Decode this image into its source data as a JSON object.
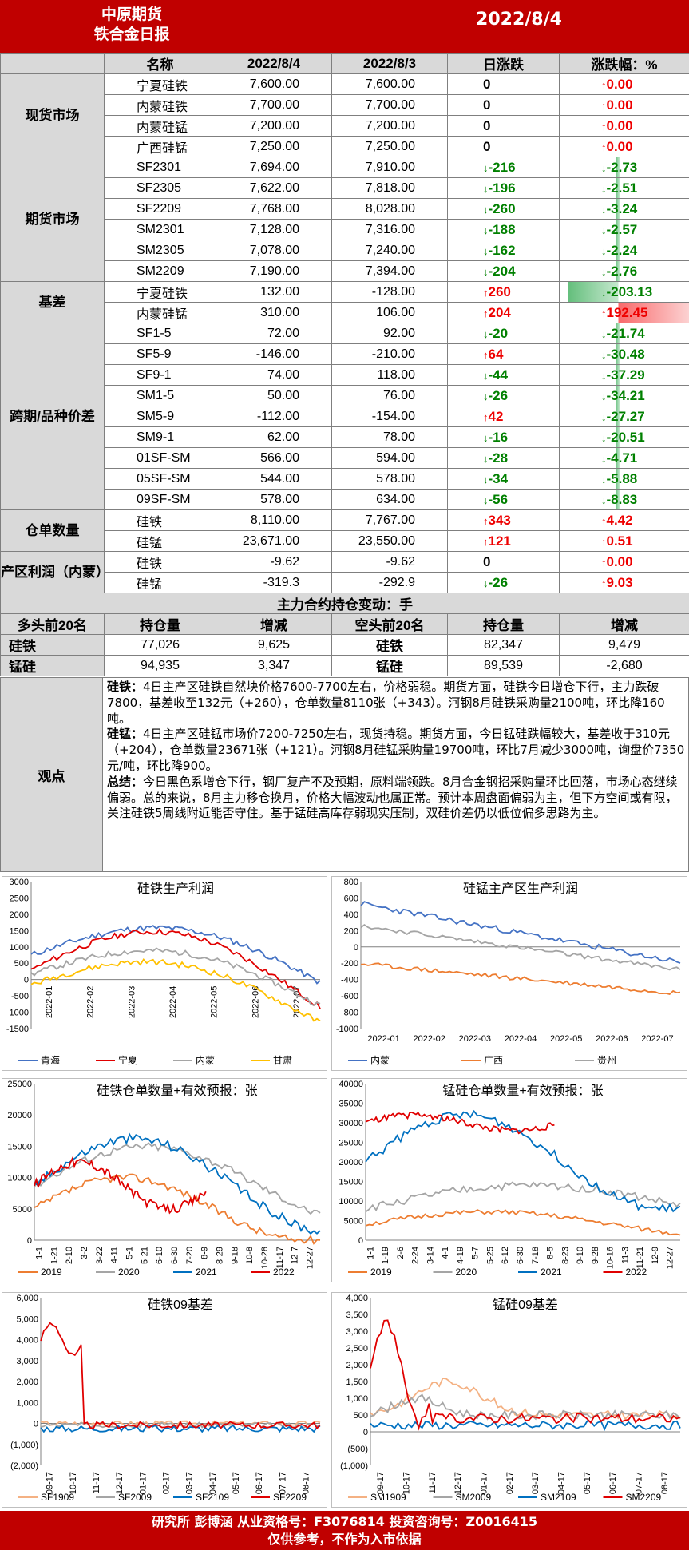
{
  "header": {
    "company": "中原期货",
    "report": "铁合金日报",
    "date": "2022/8/4"
  },
  "columns": {
    "name": "名称",
    "d1": "2022/8/4",
    "d2": "2022/8/3",
    "chg": "日涨跌",
    "pct": "涨跌幅：%"
  },
  "sections": [
    {
      "cat": "现货市场",
      "rows": [
        {
          "name": "宁夏硅铁",
          "v1": "7,600.00",
          "v2": "7,600.00",
          "chg": "0",
          "pct": "0.00",
          "dir": "zr",
          "pdir": "up"
        },
        {
          "name": "内蒙硅铁",
          "v1": "7,700.00",
          "v2": "7,700.00",
          "chg": "0",
          "pct": "0.00",
          "dir": "zr",
          "pdir": "up"
        },
        {
          "name": "内蒙硅锰",
          "v1": "7,200.00",
          "v2": "7,200.00",
          "chg": "0",
          "pct": "0.00",
          "dir": "zr",
          "pdir": "up"
        },
        {
          "name": "广西硅锰",
          "v1": "7,250.00",
          "v2": "7,250.00",
          "chg": "0",
          "pct": "0.00",
          "dir": "zr",
          "pdir": "up"
        }
      ]
    },
    {
      "cat": "期货市场",
      "rows": [
        {
          "name": "SF2301",
          "v1": "7,694.00",
          "v2": "7,910.00",
          "chg": "-216",
          "pct": "-2.73",
          "dir": "dn",
          "pdir": "dn"
        },
        {
          "name": "SF2305",
          "v1": "7,622.00",
          "v2": "7,818.00",
          "chg": "-196",
          "pct": "-2.51",
          "dir": "dn",
          "pdir": "dn"
        },
        {
          "name": "SF2209",
          "v1": "7,768.00",
          "v2": "8,028.00",
          "chg": "-260",
          "pct": "-3.24",
          "dir": "dn",
          "pdir": "dn"
        },
        {
          "name": "SM2301",
          "v1": "7,128.00",
          "v2": "7,316.00",
          "chg": "-188",
          "pct": "-2.57",
          "dir": "dn",
          "pdir": "dn"
        },
        {
          "name": "SM2305",
          "v1": "7,078.00",
          "v2": "7,240.00",
          "chg": "-162",
          "pct": "-2.24",
          "dir": "dn",
          "pdir": "dn"
        },
        {
          "name": "SM2209",
          "v1": "7,190.00",
          "v2": "7,394.00",
          "chg": "-204",
          "pct": "-2.76",
          "dir": "dn",
          "pdir": "dn"
        }
      ]
    },
    {
      "cat": "基差",
      "rows": [
        {
          "name": "宁夏硅铁",
          "v1": "132.00",
          "v2": "-128.00",
          "chg": "260",
          "pct": "-203.13",
          "dir": "up",
          "pdir": "dn",
          "bar": "g"
        },
        {
          "name": "内蒙硅锰",
          "v1": "310.00",
          "v2": "106.00",
          "chg": "204",
          "pct": "192.45",
          "dir": "up",
          "pdir": "up",
          "bar": "r"
        }
      ]
    },
    {
      "cat": "跨期/品种价差",
      "rows": [
        {
          "name": "SF1-5",
          "v1": "72.00",
          "v2": "92.00",
          "chg": "-20",
          "pct": "-21.74",
          "dir": "dn",
          "pdir": "dn"
        },
        {
          "name": "SF5-9",
          "v1": "-146.00",
          "v2": "-210.00",
          "chg": "64",
          "pct": "-30.48",
          "dir": "up",
          "pdir": "dn"
        },
        {
          "name": "SF9-1",
          "v1": "74.00",
          "v2": "118.00",
          "chg": "-44",
          "pct": "-37.29",
          "dir": "dn",
          "pdir": "dn"
        },
        {
          "name": "SM1-5",
          "v1": "50.00",
          "v2": "76.00",
          "chg": "-26",
          "pct": "-34.21",
          "dir": "dn",
          "pdir": "dn"
        },
        {
          "name": "SM5-9",
          "v1": "-112.00",
          "v2": "-154.00",
          "chg": "42",
          "pct": "-27.27",
          "dir": "up",
          "pdir": "dn"
        },
        {
          "name": "SM9-1",
          "v1": "62.00",
          "v2": "78.00",
          "chg": "-16",
          "pct": "-20.51",
          "dir": "dn",
          "pdir": "dn"
        },
        {
          "name": "01SF-SM",
          "v1": "566.00",
          "v2": "594.00",
          "chg": "-28",
          "pct": "-4.71",
          "dir": "dn",
          "pdir": "dn"
        },
        {
          "name": "05SF-SM",
          "v1": "544.00",
          "v2": "578.00",
          "chg": "-34",
          "pct": "-5.88",
          "dir": "dn",
          "pdir": "dn"
        },
        {
          "name": "09SF-SM",
          "v1": "578.00",
          "v2": "634.00",
          "chg": "-56",
          "pct": "-8.83",
          "dir": "dn",
          "pdir": "dn"
        }
      ]
    },
    {
      "cat": "仓单数量",
      "rows": [
        {
          "name": "硅铁",
          "v1": "8,110.00",
          "v2": "7,767.00",
          "chg": "343",
          "pct": "4.42",
          "dir": "up",
          "pdir": "up"
        },
        {
          "name": "硅锰",
          "v1": "23,671.00",
          "v2": "23,550.00",
          "chg": "121",
          "pct": "0.51",
          "dir": "up",
          "pdir": "up"
        }
      ]
    },
    {
      "cat": "产区利润（内蒙）",
      "rows": [
        {
          "name": "硅铁",
          "v1": "-9.62",
          "v2": "-9.62",
          "chg": "0",
          "pct": "0.00",
          "dir": "zr",
          "pdir": "up"
        },
        {
          "name": "硅锰",
          "v1": "-319.3",
          "v2": "-292.9",
          "chg": "-26",
          "pct": "9.03",
          "dir": "dn",
          "pdir": "up"
        }
      ]
    }
  ],
  "arrows": {
    "up": "↑",
    "dn": "↓"
  },
  "positions": {
    "title": "主力合约持仓变动：手",
    "headers": [
      "多头前20名",
      "持仓量",
      "增减",
      "空头前20名",
      "持仓量",
      "增减"
    ],
    "rows": [
      {
        "name": "硅铁",
        "long": "77,026",
        "lchg": "9,625",
        "sname": "硅铁",
        "short": "82,347",
        "schg": "9,479"
      },
      {
        "name": "锰硅",
        "long": "94,935",
        "lchg": "3,347",
        "sname": "锰硅",
        "short": "89,539",
        "schg": "-2,680"
      }
    ]
  },
  "viewpoint": {
    "label": "观点",
    "p1_head": "硅铁：",
    "p1": "4日主产区硅铁自然块价格7600-7700左右，价格弱稳。期货方面，硅铁今日增仓下行，主力跌破7800，基差收至132元（+260），仓单数量8110张（+343）。河钢8月硅铁采购量2100吨，环比降160吨。",
    "p2_head": "硅锰：",
    "p2": "4日主产区硅锰市场价7200-7250左右，现货持稳。期货方面，今日锰硅跌幅较大，基差收于310元（+204），仓单数量23671张（+121）。河钢8月硅锰采购量19700吨，环比7月减少3000吨，询盘价7350元/吨，环比降900。",
    "p3_head": "总结：",
    "p3": "今日黑色系增仓下行，钢厂复产不及预期，原料端领跌。8月合金钢招采购量环比回落，市场心态继续偏弱。总的来说，8月主力移仓换月，价格大幅波动也属正常。预计本周盘面偏弱为主，但下方空间或有限，关注硅铁5周线附近能否守住。基于锰硅高库存弱现实压制，双硅价差仍以低位偏多思路为主。"
  },
  "charts": {
    "c1": {
      "title": "硅铁生产利润",
      "yticks": [
        "3000",
        "2500",
        "2000",
        "1500",
        "1000",
        "500",
        "0",
        "-500",
        "-1000",
        "-1500"
      ],
      "xticks": [
        "2022-01",
        "2022-02",
        "2022-03",
        "2022-04",
        "2022-05",
        "2022-06",
        "2022-07"
      ],
      "legend": [
        "青海",
        "宁夏",
        "内蒙",
        "甘肃"
      ],
      "colors": [
        "#4472c4",
        "#e00000",
        "#a5a5a5",
        "#ffc000"
      ]
    },
    "c2": {
      "title": "硅锰主产区生产利润",
      "yticks": [
        "800",
        "600",
        "400",
        "200",
        "0",
        "-200",
        "-400",
        "-600",
        "-800",
        "-1000"
      ],
      "xticks": [
        "2022-01",
        "2022-02",
        "2022-03",
        "2022-04",
        "2022-05",
        "2022-06",
        "2022-07"
      ],
      "legend": [
        "内蒙",
        "广西",
        "贵州"
      ],
      "colors": [
        "#4472c4",
        "#ed7d31",
        "#a5a5a5"
      ]
    },
    "c3": {
      "title": "硅铁仓单数量+有效预报：张",
      "yticks": [
        "25000",
        "20000",
        "15000",
        "10000",
        "5000",
        "0"
      ],
      "xticks": [
        "1-1",
        "1-21",
        "2-10",
        "3-2",
        "3-22",
        "4-11",
        "5-1",
        "5-21",
        "6-10",
        "6-30",
        "7-20",
        "8-9",
        "8-29",
        "9-18",
        "10-8",
        "10-28",
        "11-17",
        "12-7",
        "12-27"
      ],
      "legend": [
        "2019",
        "2020",
        "2021",
        "2022"
      ],
      "colors": [
        "#ed7d31",
        "#a5a5a5",
        "#0070c0",
        "#e00000"
      ]
    },
    "c4": {
      "title": "锰硅仓单数量+有效预报：张",
      "yticks": [
        "40000",
        "35000",
        "30000",
        "25000",
        "20000",
        "15000",
        "10000",
        "5000",
        "0"
      ],
      "xticks": [
        "1-1",
        "1-19",
        "2-6",
        "2-24",
        "3-14",
        "4-1",
        "4-19",
        "5-7",
        "5-25",
        "6-12",
        "6-30",
        "7-18",
        "8-5",
        "8-23",
        "9-10",
        "9-28",
        "10-16",
        "11-3",
        "11-21",
        "12-9",
        "12-27"
      ],
      "legend": [
        "2019",
        "2020",
        "2021",
        "2022"
      ],
      "colors": [
        "#ed7d31",
        "#a5a5a5",
        "#0070c0",
        "#e00000"
      ]
    },
    "c5": {
      "title": "硅铁09基差",
      "yticks": [
        "6,000",
        "5,000",
        "4,000",
        "3,000",
        "2,000",
        "1,000",
        "0",
        "(1,000)",
        "(2,000)"
      ],
      "xticks": [
        "09-17",
        "10-17",
        "11-17",
        "12-17",
        "01-17",
        "02-17",
        "03-17",
        "04-17",
        "05-17",
        "06-17",
        "07-17",
        "08-17"
      ],
      "legend": [
        "SF1909",
        "SF2009",
        "SF2109",
        "SF2209"
      ],
      "colors": [
        "#f4b183",
        "#a5a5a5",
        "#0070c0",
        "#e00000"
      ]
    },
    "c6": {
      "title": "锰硅09基差",
      "yticks": [
        "4,000",
        "3,500",
        "3,000",
        "2,500",
        "2,000",
        "1,500",
        "1,000",
        "500",
        "0",
        "(500)",
        "(1,000)"
      ],
      "xticks": [
        "09-17",
        "10-17",
        "11-17",
        "12-17",
        "01-17",
        "02-17",
        "03-17",
        "04-17",
        "05-17",
        "06-17",
        "07-17",
        "08-17"
      ],
      "legend": [
        "SM1909",
        "SM2009",
        "SM2109",
        "SM2209"
      ],
      "colors": [
        "#f4b183",
        "#a5a5a5",
        "#0070c0",
        "#e00000"
      ]
    }
  },
  "footer": {
    "line1": "研究所 彭博涵 从业资格号：F3076814 投资咨询号：Z0016415",
    "line2": "仅供参考，不作为入市依据"
  }
}
